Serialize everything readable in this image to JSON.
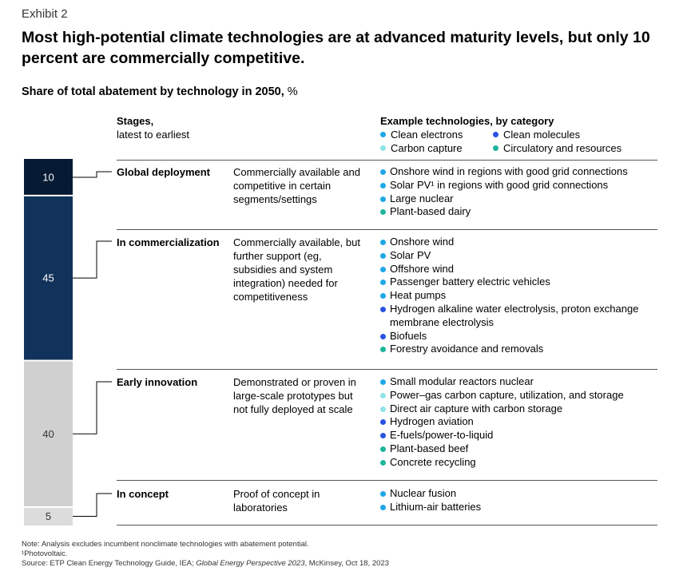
{
  "exhibit_label": "Exhibit 2",
  "title": "Most high-potential climate technologies are at advanced maturity levels, but only 10 percent are commercially competitive.",
  "subtitle_bold": "Share of total abatement by technology in 2050,",
  "subtitle_unit": "%",
  "stages_header": {
    "bold": "Stages,",
    "sub": "latest to earliest"
  },
  "tech_header": "Example technologies, by category",
  "colors": {
    "clean_electrons": "#1fa7e6",
    "clean_molecules": "#2a52e0",
    "carbon_capture": "#8ee3e6",
    "circulatory": "#1eb59a",
    "bar_dark": "#071a33",
    "bar_navy": "#11325a",
    "bar_gray": "#d0d0d0",
    "bar_lightgray": "#dcdcdc"
  },
  "legend": [
    {
      "label": "Clean electrons",
      "color": "#1fa7e6",
      "icon": "dot-icon"
    },
    {
      "label": "Clean molecules",
      "color": "#2a52e0",
      "icon": "dot-icon"
    },
    {
      "label": "Carbon capture",
      "color": "#8ee3e6",
      "icon": "dot-icon"
    },
    {
      "label": "Circulatory and resources",
      "color": "#1eb59a",
      "icon": "dot-icon"
    }
  ],
  "chart_data": {
    "type": "bar",
    "stacked": true,
    "orientation": "vertical",
    "unit": "%",
    "categories": [
      "Global deployment",
      "In commercialization",
      "Early innovation",
      "In concept"
    ],
    "values": [
      10,
      45,
      40,
      5
    ],
    "labels": [
      "10",
      "45",
      "40",
      "5"
    ],
    "colors": [
      "#071a33",
      "#11325a",
      "#d0d0d0",
      "#dcdcdc"
    ]
  },
  "stages": [
    {
      "name": "Global deployment",
      "description": "Commercially available and competitive in certain segments/settings",
      "technologies": [
        {
          "text": "Onshore wind in regions with good grid connections",
          "category": "clean_electrons"
        },
        {
          "text": "Solar PV¹ in regions with good grid connections",
          "category": "clean_electrons"
        },
        {
          "text": "Large nuclear",
          "category": "clean_electrons"
        },
        {
          "text": "Plant-based dairy",
          "category": "circulatory"
        }
      ]
    },
    {
      "name": "In commercialization",
      "description": "Commercially available, but further support (eg, subsidies and system integration) needed for competitiveness",
      "technologies": [
        {
          "text": "Onshore wind",
          "category": "clean_electrons"
        },
        {
          "text": "Solar PV",
          "category": "clean_electrons"
        },
        {
          "text": "Offshore wind",
          "category": "clean_electrons"
        },
        {
          "text": "Passenger battery electric vehicles",
          "category": "clean_electrons"
        },
        {
          "text": "Heat pumps",
          "category": "clean_electrons"
        },
        {
          "text": "Hydrogen alkaline water electrolysis, proton exchange membrane electrolysis",
          "category": "clean_molecules"
        },
        {
          "text": "Biofuels",
          "category": "clean_molecules"
        },
        {
          "text": "Forestry avoidance and removals",
          "category": "circulatory"
        }
      ]
    },
    {
      "name": "Early innovation",
      "description": "Demonstrated or proven in large-scale prototypes but not fully deployed at scale",
      "technologies": [
        {
          "text": "Small modular reactors nuclear",
          "category": "clean_electrons"
        },
        {
          "text": "Power–gas carbon capture, utilization, and storage",
          "category": "carbon_capture"
        },
        {
          "text": "Direct air capture with carbon storage",
          "category": "carbon_capture"
        },
        {
          "text": "Hydrogen aviation",
          "category": "clean_molecules"
        },
        {
          "text": "E-fuels/power-to-liquid",
          "category": "clean_molecules"
        },
        {
          "text": "Plant-based beef",
          "category": "circulatory"
        },
        {
          "text": "Concrete recycling",
          "category": "circulatory"
        }
      ]
    },
    {
      "name": "In concept",
      "description": "Proof of concept in laboratories",
      "technologies": [
        {
          "text": "Nuclear fusion",
          "category": "clean_electrons"
        },
        {
          "text": "Lithium-air batteries",
          "category": "clean_electrons"
        }
      ]
    }
  ],
  "footnotes": {
    "note": "Note: Analysis excludes incumbent nonclimate technologies with abatement potential.",
    "pv": "¹Photovoltaic.",
    "source_pre": "Source: ETP Clean Energy Technology Guide, IEA;",
    "source_italic": "Global Energy Perspective 2023",
    "source_post": ", McKinsey, Oct 18, 2023"
  }
}
